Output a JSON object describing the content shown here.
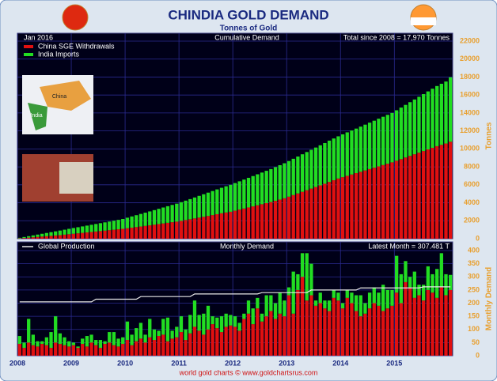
{
  "title": "CHINDIA GOLD DEMAND",
  "subtitle": "Tonnes of Gold",
  "footer": "world gold charts © www.goldchartsrus.com",
  "map_labels": [
    "China",
    "India"
  ],
  "chart_data": [
    {
      "type": "bar",
      "stacked": true,
      "date_label": "Jan 2016",
      "subtitle": "Cumulative Demand",
      "annotation": "Total since 2008 = 17,970 Tonnes",
      "ylabel": "Tonnes",
      "ylim": [
        0,
        22000
      ],
      "yticks": [
        0,
        2000,
        4000,
        6000,
        8000,
        10000,
        12000,
        14000,
        16000,
        18000,
        20000,
        22000
      ],
      "grid": true,
      "series": [
        {
          "name": "China SGE Withdrawals",
          "color": "#e01010",
          "values": [
            40,
            80,
            120,
            160,
            200,
            240,
            280,
            320,
            360,
            400,
            450,
            500,
            550,
            600,
            650,
            700,
            750,
            800,
            850,
            900,
            950,
            1000,
            1050,
            1100,
            1165,
            1230,
            1295,
            1360,
            1425,
            1490,
            1560,
            1630,
            1700,
            1770,
            1835,
            1900,
            1990,
            2080,
            2170,
            2260,
            2350,
            2440,
            2530,
            2630,
            2730,
            2830,
            2920,
            3000,
            3120,
            3240,
            3360,
            3480,
            3600,
            3720,
            3840,
            3960,
            4080,
            4220,
            4360,
            4500,
            4680,
            4860,
            5040,
            5220,
            5400,
            5580,
            5760,
            5940,
            6120,
            6320,
            6510,
            6700,
            6850,
            7000,
            7150,
            7300,
            7450,
            7600,
            7750,
            7900,
            8050,
            8200,
            8350,
            8500,
            8680,
            8860,
            9040,
            9220,
            9400,
            9580,
            9760,
            9940,
            10120,
            10300,
            10450,
            10600,
            10800
          ]
        },
        {
          "name": "India Imports",
          "color": "#22dd22",
          "values": [
            60,
            110,
            160,
            210,
            260,
            310,
            360,
            410,
            460,
            510,
            555,
            600,
            640,
            680,
            720,
            760,
            800,
            840,
            880,
            920,
            960,
            1000,
            1050,
            1100,
            1175,
            1250,
            1325,
            1400,
            1475,
            1550,
            1625,
            1700,
            1775,
            1850,
            1925,
            2000,
            2080,
            2160,
            2240,
            2330,
            2420,
            2510,
            2600,
            2680,
            2760,
            2840,
            2920,
            3000,
            3075,
            3150,
            3225,
            3300,
            3375,
            3450,
            3525,
            3600,
            3675,
            3750,
            3825,
            3900,
            3970,
            4040,
            4110,
            4180,
            4250,
            4320,
            4390,
            4460,
            4530,
            4600,
            4650,
            4700,
            4770,
            4840,
            4900,
            4960,
            5030,
            5100,
            5170,
            5240,
            5310,
            5380,
            5440,
            5500,
            5620,
            5740,
            5860,
            5980,
            6100,
            6220,
            6340,
            6460,
            6580,
            6700,
            6800,
            6900,
            7170
          ]
        }
      ]
    },
    {
      "type": "bar",
      "stacked": true,
      "subtitle": "Monthly Demand",
      "annotation": "Latest Month = 307.481 T",
      "ylabel": "Monthly Demand",
      "ylim": [
        0,
        400
      ],
      "yticks": [
        0,
        50,
        100,
        150,
        200,
        250,
        300,
        350,
        400
      ],
      "grid": true,
      "categories": [
        "2008",
        null,
        null,
        null,
        null,
        null,
        null,
        null,
        null,
        null,
        null,
        null,
        "2009",
        null,
        null,
        null,
        null,
        null,
        null,
        null,
        null,
        null,
        null,
        null,
        "2010",
        null,
        null,
        null,
        null,
        null,
        null,
        null,
        null,
        null,
        null,
        null,
        "2011",
        null,
        null,
        null,
        null,
        null,
        null,
        null,
        null,
        null,
        null,
        null,
        "2012",
        null,
        null,
        null,
        null,
        null,
        null,
        null,
        null,
        null,
        null,
        null,
        "2013",
        null,
        null,
        null,
        null,
        null,
        null,
        null,
        null,
        null,
        null,
        null,
        "2014",
        null,
        null,
        null,
        null,
        null,
        null,
        null,
        null,
        null,
        null,
        null,
        "2015",
        null,
        null,
        null,
        null,
        null,
        null,
        null,
        null,
        null,
        null,
        null,
        null
      ],
      "series": [
        {
          "color": "#e01010",
          "values": [
            45,
            30,
            50,
            40,
            35,
            45,
            40,
            30,
            50,
            45,
            40,
            35,
            40,
            30,
            45,
            35,
            50,
            40,
            30,
            45,
            50,
            40,
            35,
            45,
            60,
            40,
            55,
            65,
            50,
            70,
            60,
            75,
            80,
            55,
            65,
            70,
            90,
            60,
            85,
            110,
            95,
            80,
            100,
            120,
            105,
            90,
            110,
            115,
            110,
            95,
            140,
            160,
            120,
            180,
            130,
            150,
            170,
            140,
            160,
            150,
            230,
            160,
            250,
            300,
            210,
            230,
            190,
            200,
            180,
            170,
            220,
            210,
            180,
            220,
            200,
            170,
            150,
            160,
            180,
            200,
            190,
            170,
            180,
            190,
            240,
            200,
            280,
            260,
            220,
            230,
            210,
            250,
            240,
            220,
            260,
            230,
            250
          ]
        },
        {
          "color": "#22dd22",
          "values": [
            30,
            20,
            90,
            40,
            20,
            10,
            30,
            60,
            100,
            40,
            30,
            20,
            10,
            5,
            20,
            40,
            30,
            20,
            30,
            10,
            40,
            50,
            30,
            25,
            70,
            40,
            50,
            60,
            30,
            70,
            40,
            20,
            60,
            90,
            30,
            40,
            60,
            40,
            70,
            100,
            60,
            80,
            90,
            30,
            40,
            60,
            50,
            40,
            40,
            30,
            20,
            50,
            60,
            40,
            30,
            80,
            60,
            60,
            80,
            60,
            30,
            160,
            60,
            90,
            180,
            120,
            20,
            40,
            30,
            40,
            30,
            30,
            20,
            30,
            40,
            60,
            80,
            40,
            60,
            60,
            50,
            100,
            70,
            60,
            140,
            110,
            80,
            40,
            100,
            40,
            60,
            90,
            70,
            110,
            130,
            80,
            57.481
          ]
        },
        {
          "name": "Global Production",
          "type": "line",
          "color": "#e8e8e8",
          "values": [
            205,
            205,
            205,
            205,
            205,
            205,
            205,
            205,
            205,
            205,
            205,
            205,
            205,
            205,
            205,
            205,
            205,
            215,
            215,
            215,
            215,
            215,
            215,
            215,
            215,
            215,
            215,
            225,
            225,
            225,
            225,
            225,
            225,
            225,
            225,
            225,
            225,
            225,
            225,
            235,
            235,
            235,
            235,
            235,
            235,
            235,
            235,
            235,
            235,
            235,
            235,
            235,
            235,
            235,
            240,
            240,
            240,
            240,
            240,
            240,
            240,
            240,
            240,
            240,
            240,
            250,
            250,
            250,
            250,
            250,
            250,
            250,
            250,
            250,
            250,
            250,
            258,
            258,
            258,
            258,
            258,
            258,
            258,
            258,
            258,
            258,
            258,
            258,
            258,
            258,
            262,
            262,
            262,
            262,
            262,
            262,
            262
          ]
        }
      ]
    }
  ]
}
